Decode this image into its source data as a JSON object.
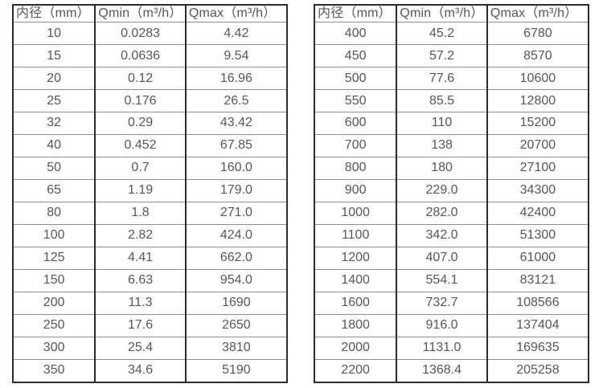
{
  "page": {
    "background": "#ffffff",
    "text_color": "#575757",
    "grid_line_color": "#8f8f8f",
    "border_color": "#2b2b2b"
  },
  "tables": [
    {
      "name": "flow-range-table-small-diameters",
      "headers": [
        "内径（mm）",
        "Qmin（m³/h）",
        "Qmax（m³/h）"
      ],
      "rows": [
        [
          "10",
          "0.0283",
          "4.42"
        ],
        [
          "15",
          "0.0636",
          "9.54"
        ],
        [
          "20",
          "0.12",
          "16.96"
        ],
        [
          "25",
          "0.176",
          "26.5"
        ],
        [
          "32",
          "0.29",
          "43.42"
        ],
        [
          "40",
          "0.452",
          "67.85"
        ],
        [
          "50",
          "0.7",
          "160.0"
        ],
        [
          "65",
          "1.19",
          "179.0"
        ],
        [
          "80",
          "1.8",
          "271.0"
        ],
        [
          "100",
          "2.82",
          "424.0"
        ],
        [
          "125",
          "4.41",
          "662.0"
        ],
        [
          "150",
          "6.63",
          "954.0"
        ],
        [
          "200",
          "11.3",
          "1690"
        ],
        [
          "250",
          "17.6",
          "2650"
        ],
        [
          "300",
          "25.4",
          "3810"
        ],
        [
          "350",
          "34.6",
          "5190"
        ]
      ]
    },
    {
      "name": "flow-range-table-large-diameters",
      "headers": [
        "内径（mm）",
        "Qmin（m³/h）",
        "Qmax（m³/h）"
      ],
      "rows": [
        [
          "400",
          "45.2",
          "6780"
        ],
        [
          "450",
          "57.2",
          "8570"
        ],
        [
          "500",
          "77.6",
          "10600"
        ],
        [
          "550",
          "85.5",
          "12800"
        ],
        [
          "600",
          "110",
          "15200"
        ],
        [
          "700",
          "138",
          "20700"
        ],
        [
          "800",
          "180",
          "27100"
        ],
        [
          "900",
          "229.0",
          "34300"
        ],
        [
          "1000",
          "282.0",
          "42400"
        ],
        [
          "1100",
          "342.0",
          "51300"
        ],
        [
          "1200",
          "407.0",
          "61000"
        ],
        [
          "1400",
          "554.1",
          "83121"
        ],
        [
          "1600",
          "732.7",
          "108566"
        ],
        [
          "1800",
          "916.0",
          "137404"
        ],
        [
          "2000",
          "1131.0",
          "169635"
        ],
        [
          "2200",
          "1368.4",
          "205258"
        ]
      ]
    }
  ]
}
